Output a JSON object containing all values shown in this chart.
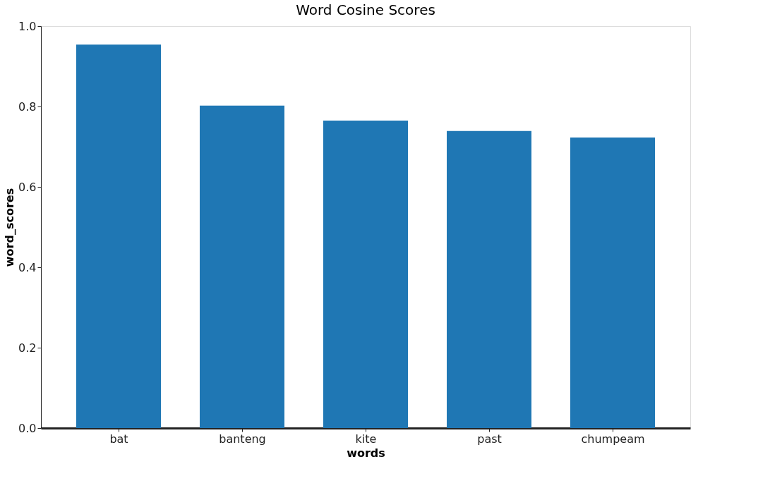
{
  "chart_data": {
    "type": "bar",
    "title": "Word Cosine Scores",
    "xlabel": "words",
    "ylabel": "word_scores",
    "categories": [
      "bat",
      "banteng",
      "kite",
      "past",
      "chumpeam"
    ],
    "values": [
      0.954,
      0.802,
      0.765,
      0.739,
      0.723
    ],
    "color": "#1f77b4",
    "ylim": [
      0,
      1.0
    ],
    "yticks": [
      {
        "value": 0,
        "label": "0.0"
      },
      0.2,
      0.4,
      0.6,
      0.8,
      {
        "value": 1.0,
        "label": "1.0"
      }
    ],
    "grid": false
  }
}
